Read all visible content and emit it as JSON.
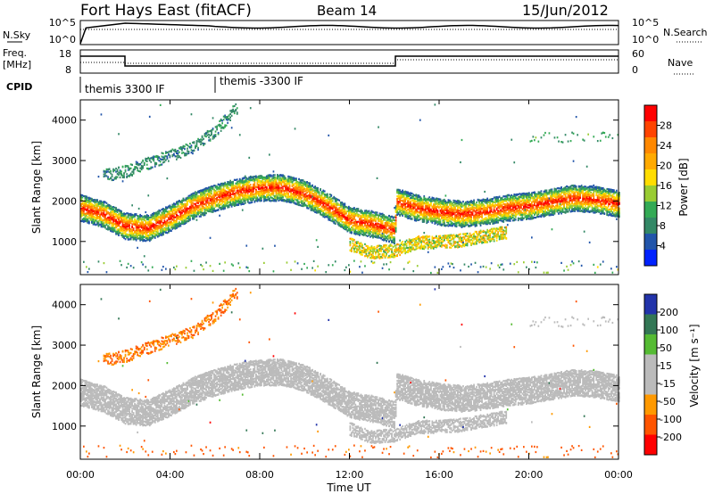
{
  "header": {
    "station": "Fort Hays East (fitACF)",
    "beam": "Beam 14",
    "date": "15/Jun/2012"
  },
  "top_panels": {
    "nsky_label": "N.Sky",
    "nsearch_label": "N.Search",
    "nsky_ticks": [
      "10^5",
      "10^0"
    ],
    "nsearch_ticks": [
      "10^5",
      "10^0"
    ],
    "freq_label_line1": "Freq.",
    "freq_label_line2": "[MHz]",
    "freq_ticks": [
      "18",
      "8"
    ],
    "nave_label": "Nave",
    "nave_ticks": [
      "60",
      "0"
    ],
    "cpid_label": "CPID",
    "cpid_modes": [
      "themis 3300 IF",
      "themis -3300 IF"
    ]
  },
  "axes": {
    "ylabel": "Slant Range [km]",
    "xlabel": "Time UT",
    "xticks": [
      "00:00",
      "04:00",
      "08:00",
      "12:00",
      "16:00",
      "20:00",
      "00:00"
    ],
    "yticks": [
      "1000",
      "2000",
      "3000",
      "4000"
    ]
  },
  "power_colorbar": {
    "label": "Power [dB]",
    "ticks": [
      "28",
      "24",
      "20",
      "16",
      "12",
      "8",
      "4"
    ],
    "colors": [
      "#ff0000",
      "#ff4400",
      "#ff8800",
      "#ffaa00",
      "#ffdd00",
      "#99cc33",
      "#33aa55",
      "#338866",
      "#2255aa",
      "#0022ff"
    ]
  },
  "velocity_colorbar": {
    "label": "Velocity [m s⁻¹]",
    "ticks": [
      "200",
      "100",
      "50",
      "15",
      "-15",
      "-50",
      "-100",
      "-200"
    ],
    "colors": [
      "#2233aa",
      "#337755",
      "#55bb33",
      "#bbbbbb",
      "#bbbbbb",
      "#ff9900",
      "#ff5500",
      "#ff0000"
    ]
  },
  "chart_data": [
    {
      "type": "heatmap",
      "title": "Power",
      "xlabel": "Time UT",
      "ylabel": "Slant Range [km]",
      "xlim_hours": [
        0,
        24
      ],
      "ylim_km": [
        180,
        4500
      ],
      "value_label": "Power [dB]",
      "value_range": [
        0,
        30
      ],
      "bands": [
        {
          "name": "main",
          "points": [
            [
              0,
              1800
            ],
            [
              1,
              1650
            ],
            [
              2,
              1350
            ],
            [
              3,
              1300
            ],
            [
              4,
              1550
            ],
            [
              5,
              1850
            ],
            [
              6,
              2050
            ],
            [
              7,
              2200
            ],
            [
              8,
              2300
            ],
            [
              9,
              2300
            ],
            [
              10,
              2150
            ],
            [
              11,
              1850
            ],
            [
              12,
              1500
            ],
            [
              13,
              1400
            ],
            [
              14,
              1250
            ],
            [
              14.1,
              1950
            ],
            [
              15,
              1800
            ],
            [
              16,
              1700
            ],
            [
              17,
              1650
            ],
            [
              18,
              1700
            ],
            [
              19,
              1800
            ],
            [
              20,
              1850
            ],
            [
              21,
              1950
            ],
            [
              22,
              2050
            ],
            [
              23,
              2000
            ],
            [
              24,
              1900
            ]
          ]
        },
        {
          "name": "lower",
          "points": [
            [
              12,
              900
            ],
            [
              13,
              700
            ],
            [
              14,
              750
            ],
            [
              15,
              950
            ],
            [
              16,
              950
            ],
            [
              17,
              1000
            ],
            [
              18,
              1100
            ],
            [
              19,
              1200
            ]
          ]
        },
        {
          "name": "upper",
          "points": [
            [
              1,
              2600
            ],
            [
              2,
              2700
            ],
            [
              3,
              2900
            ],
            [
              4,
              3100
            ],
            [
              5,
              3300
            ],
            [
              6,
              3700
            ],
            [
              7,
              4300
            ]
          ]
        }
      ]
    },
    {
      "type": "heatmap",
      "title": "Velocity",
      "xlabel": "Time UT",
      "ylabel": "Slant Range [km]",
      "xlim_hours": [
        0,
        24
      ],
      "ylim_km": [
        180,
        4500
      ],
      "value_label": "Velocity [m s⁻¹]",
      "value_range": [
        -200,
        200
      ]
    }
  ]
}
